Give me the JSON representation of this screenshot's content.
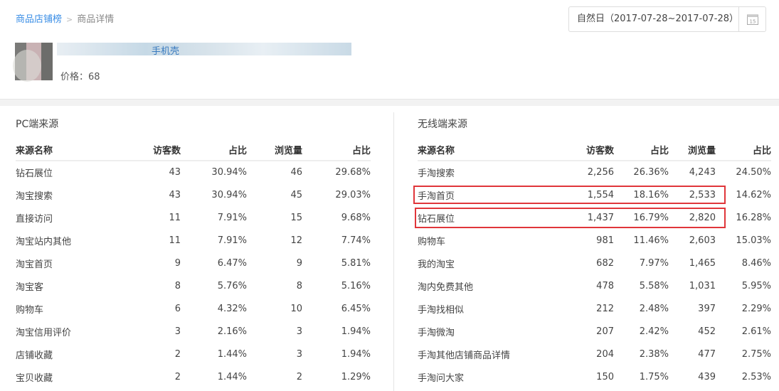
{
  "breadcrumb": {
    "parent": "商品店铺榜",
    "separator": ">",
    "current": "商品详情"
  },
  "date_picker": {
    "value": "自然日（2017-07-28~2017-07-28）",
    "icon": "calendar-icon",
    "icon_day": "15"
  },
  "product": {
    "title_visible": "手机壳",
    "price": "价格：68"
  },
  "pc": {
    "title": "PC端来源",
    "headers": [
      "来源名称",
      "访客数",
      "占比",
      "浏览量",
      "占比"
    ],
    "rows": [
      [
        "钻石展位",
        "43",
        "30.94%",
        "46",
        "29.68%"
      ],
      [
        "淘宝搜索",
        "43",
        "30.94%",
        "45",
        "29.03%"
      ],
      [
        "直接访问",
        "11",
        "7.91%",
        "15",
        "9.68%"
      ],
      [
        "淘宝站内其他",
        "11",
        "7.91%",
        "12",
        "7.74%"
      ],
      [
        "淘宝首页",
        "9",
        "6.47%",
        "9",
        "5.81%"
      ],
      [
        "淘宝客",
        "8",
        "5.76%",
        "8",
        "5.16%"
      ],
      [
        "购物车",
        "6",
        "4.32%",
        "10",
        "6.45%"
      ],
      [
        "淘宝信用评价",
        "3",
        "2.16%",
        "3",
        "1.94%"
      ],
      [
        "店铺收藏",
        "2",
        "1.44%",
        "3",
        "1.94%"
      ],
      [
        "宝贝收藏",
        "2",
        "1.44%",
        "2",
        "1.29%"
      ]
    ]
  },
  "mobile": {
    "title": "无线端来源",
    "headers": [
      "来源名称",
      "访客数",
      "占比",
      "浏览量",
      "占比"
    ],
    "rows": [
      [
        "手淘搜索",
        "2,256",
        "26.36%",
        "4,243",
        "24.50%"
      ],
      [
        "手淘首页",
        "1,554",
        "18.16%",
        "2,533",
        "14.62%"
      ],
      [
        "钻石展位",
        "1,437",
        "16.79%",
        "2,820",
        "16.28%"
      ],
      [
        "购物车",
        "981",
        "11.46%",
        "2,603",
        "15.03%"
      ],
      [
        "我的淘宝",
        "682",
        "7.97%",
        "1,465",
        "8.46%"
      ],
      [
        "淘内免费其他",
        "478",
        "5.58%",
        "1,031",
        "5.95%"
      ],
      [
        "手淘找相似",
        "212",
        "2.48%",
        "397",
        "2.29%"
      ],
      [
        "手淘微淘",
        "207",
        "2.42%",
        "452",
        "2.61%"
      ],
      [
        "手淘其他店铺商品详情",
        "204",
        "2.38%",
        "477",
        "2.75%"
      ],
      [
        "手淘问大家",
        "150",
        "1.75%",
        "439",
        "2.53%"
      ]
    ],
    "highlight_color": "#e0363a"
  }
}
